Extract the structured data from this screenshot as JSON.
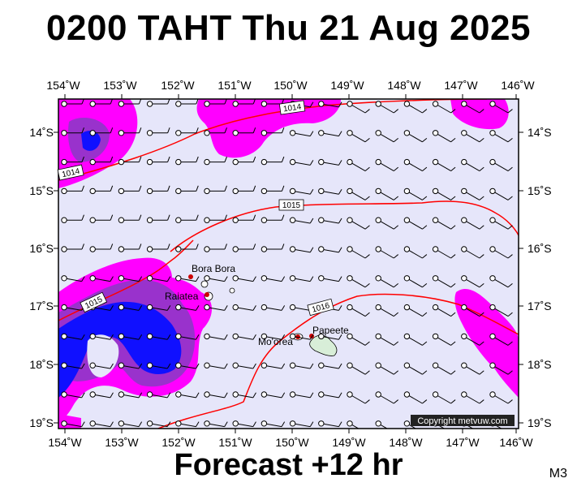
{
  "header": {
    "title": "0200 TAHT Thu 21 Aug 2025"
  },
  "footer": {
    "forecast": "Forecast +12 hr",
    "model": "M3"
  },
  "map": {
    "lon_labels": [
      "154˚W",
      "153˚W",
      "152˚W",
      "151˚W",
      "150˚W",
      "149˚W",
      "148˚W",
      "147˚W",
      "146˚W"
    ],
    "lat_labels": [
      "14˚S",
      "15˚S",
      "16˚S",
      "17˚S",
      "18˚S",
      "19˚S"
    ],
    "isobar_labels": [
      "1014",
      "1014",
      "1015",
      "1015",
      "1016"
    ],
    "places": [
      "Bora Bora",
      "Raiatea",
      "Mo'orea",
      "Papeete"
    ],
    "copyright": "Copyright metvuw.com",
    "colors": {
      "background": "#e6e6fa",
      "magenta": "#ff00ff",
      "purple": "#9932cc",
      "blue": "#0000ff",
      "isobar": "#ff0000"
    }
  }
}
